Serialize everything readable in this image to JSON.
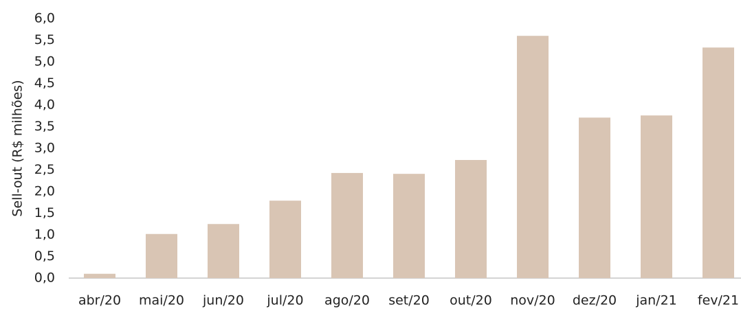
{
  "chart_data": {
    "type": "bar",
    "y_label": "Sell-out (R$ milhões)",
    "categories": [
      "abr/20",
      "mai/20",
      "jun/20",
      "jul/20",
      "ago/20",
      "set/20",
      "out/20",
      "nov/20",
      "dez/20",
      "jan/21",
      "fev/21"
    ],
    "values": [
      0.1,
      1.02,
      1.25,
      1.79,
      2.43,
      2.41,
      2.73,
      5.6,
      3.71,
      3.76,
      5.33
    ],
    "color": "#d9c5b4",
    "ylim": [
      0,
      6
    ],
    "yticks": [
      {
        "value": 0,
        "label": "0,0"
      },
      {
        "value": 0.5,
        "label": "0,5"
      },
      {
        "value": 1,
        "label": "1,0"
      },
      {
        "value": 1.5,
        "label": "1,5"
      },
      {
        "value": 2,
        "label": "2,0"
      },
      {
        "value": 2.5,
        "label": "2,5"
      },
      {
        "value": 3,
        "label": "3,0"
      },
      {
        "value": 3.5,
        "label": "3,5"
      },
      {
        "value": 4,
        "label": "4,0"
      },
      {
        "value": 4.5,
        "label": "4,5"
      },
      {
        "value": 5,
        "label": "5,0"
      },
      {
        "value": 5.5,
        "label": "5,5"
      },
      {
        "value": 6,
        "label": "6,0"
      }
    ],
    "grid": false
  }
}
